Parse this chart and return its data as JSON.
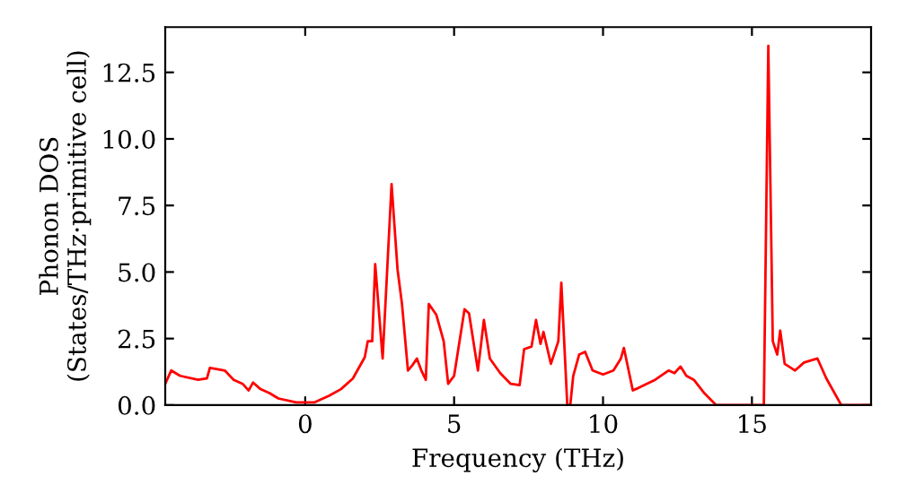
{
  "chart_data": {
    "type": "line",
    "xlabel": "Frequency (THz)",
    "ylabel": "Phonon DOS\n(States/THz·primitive cell)",
    "xlim": [
      -4.7,
      19.0
    ],
    "ylim": [
      0,
      14.2
    ],
    "xticks": [
      0,
      5,
      10,
      15
    ],
    "yticks": [
      {
        "value": 0,
        "label": "0.0"
      },
      2.5,
      {
        "value": 5,
        "label": "5.0"
      },
      7.5,
      {
        "value": 10,
        "label": "10.0"
      },
      12.5
    ],
    "grid": false,
    "legend": false,
    "marker": "none",
    "line_style": "solid",
    "series": [
      {
        "color": "#ff0000",
        "x": [
          -4.7,
          -4.5,
          -4.2,
          -3.6,
          -3.3,
          -3.2,
          -2.7,
          -2.4,
          -2.1,
          -1.9,
          -1.75,
          -1.5,
          -1.2,
          -0.9,
          -0.3,
          0.3,
          0.8,
          1.2,
          1.6,
          2.0,
          2.1,
          2.25,
          2.35,
          2.6,
          2.9,
          3.1,
          3.25,
          3.45,
          3.6,
          3.75,
          3.9,
          4.05,
          4.15,
          4.4,
          4.65,
          4.8,
          5.0,
          5.35,
          5.5,
          5.8,
          6.0,
          6.2,
          6.55,
          6.9,
          7.2,
          7.35,
          7.6,
          7.75,
          7.9,
          8.0,
          8.25,
          8.5,
          8.6,
          8.8,
          8.9,
          9.0,
          9.2,
          9.4,
          9.65,
          10.0,
          10.35,
          10.6,
          10.7,
          11.0,
          11.2,
          11.75,
          12.2,
          12.4,
          12.6,
          12.8,
          13.05,
          13.4,
          13.8,
          15.0,
          15.4,
          15.55,
          15.7,
          15.85,
          15.95,
          16.1,
          16.45,
          16.75,
          17.2,
          17.5,
          18.0,
          19.0
        ],
        "values": [
          0.8,
          1.3,
          1.1,
          0.95,
          1.0,
          1.4,
          1.3,
          0.95,
          0.8,
          0.55,
          0.85,
          0.6,
          0.45,
          0.25,
          0.1,
          0.1,
          0.35,
          0.6,
          1.0,
          1.8,
          2.4,
          2.4,
          5.3,
          1.75,
          8.3,
          5.1,
          3.8,
          1.3,
          1.5,
          1.75,
          1.3,
          0.95,
          3.8,
          3.4,
          2.4,
          0.8,
          1.1,
          3.6,
          3.45,
          1.3,
          3.2,
          1.75,
          1.2,
          0.8,
          0.75,
          2.1,
          2.2,
          3.2,
          2.3,
          2.75,
          1.55,
          2.4,
          4.6,
          0,
          0,
          1.1,
          1.9,
          2.0,
          1.3,
          1.15,
          1.3,
          1.75,
          2.15,
          0.55,
          0.65,
          0.95,
          1.3,
          1.2,
          1.45,
          1.1,
          0.95,
          0.45,
          0,
          0,
          0,
          13.5,
          2.4,
          1.9,
          2.8,
          1.55,
          1.3,
          1.6,
          1.75,
          1.0,
          0,
          0
        ]
      }
    ]
  }
}
